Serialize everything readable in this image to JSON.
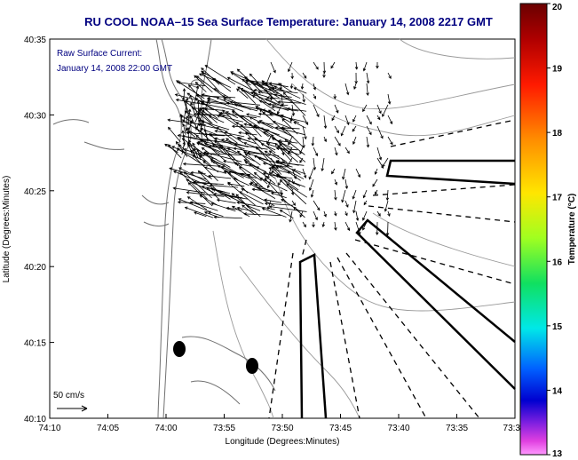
{
  "title": "RU COOL  NOAA–15  Sea Surface Temperature:  January 14, 2008 2217 GMT",
  "overlay": {
    "line1": "Raw Surface Current:",
    "line2": "January 14, 2008 22:00 GMT"
  },
  "axes": {
    "xlabel": "Longitude (Degrees:Minutes)",
    "ylabel": "Latitude (Degrees:Minutes)",
    "xticks": [
      "74:10",
      "74:05",
      "74:00",
      "73:55",
      "73:50",
      "73:45",
      "73:40",
      "73:35",
      "73:3"
    ],
    "yticks": [
      "40:35",
      "40:30",
      "40:25",
      "40:20",
      "40:15",
      "40:10"
    ]
  },
  "scale_label": "50 cm/s",
  "colorbar": {
    "label": "Temperature (°C)",
    "min": 13,
    "max": 20,
    "ticks": [
      "20",
      "19",
      "18",
      "17",
      "16",
      "15",
      "14",
      "13"
    ]
  },
  "colors": {
    "title_text": "#000080",
    "overlay_text": "#000080",
    "land_contour": "#707070",
    "frame": "#000000"
  }
}
